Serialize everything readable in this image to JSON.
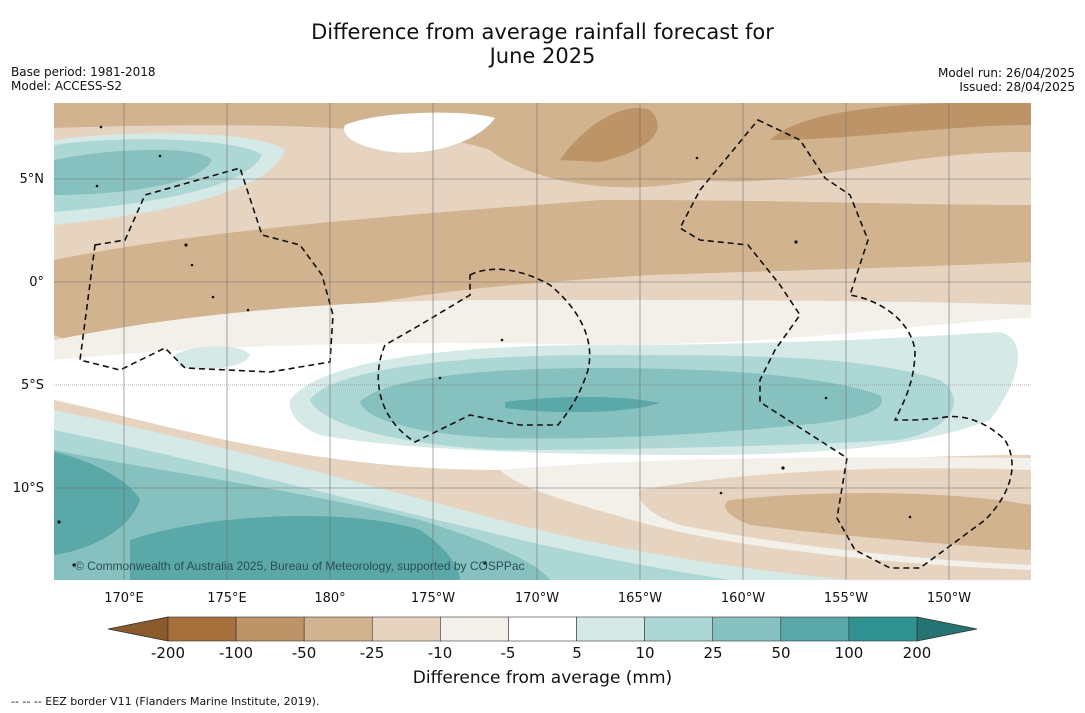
{
  "title_line1": "Difference from average rainfall forecast for",
  "title_line2": "June 2025",
  "meta_left": {
    "base_period": "Base period: 1981-2018",
    "model": "Model: ACCESS-S2"
  },
  "meta_right": {
    "model_run": "Model run: 26/04/2025",
    "issued": "Issued: 28/04/2025"
  },
  "map": {
    "lon_labels": [
      "170°E",
      "175°E",
      "180°",
      "175°W",
      "170°W",
      "165°W",
      "160°W",
      "155°W",
      "150°W"
    ],
    "lat_labels": [
      "5°N",
      "0°",
      "5°S",
      "10°S"
    ],
    "copyright": "© Commonwealth of Australia 2025, Bureau of Meteorology, supported by COSPPac"
  },
  "colorbar": {
    "title": "Difference from average (mm)",
    "ticks": [
      "-200",
      "-100",
      "-50",
      "-25",
      "-10",
      "-5",
      "5",
      "10",
      "25",
      "50",
      "100",
      "200"
    ],
    "colors": [
      "#a5703b",
      "#bc9468",
      "#d2b38f",
      "#e6d4c0",
      "#f3efe9",
      "#ffffff",
      "#d5e9e7",
      "#add7d5",
      "#86c1bf",
      "#5aa8a8",
      "#2f9190"
    ],
    "under_color": "#8a5a2b",
    "over_color": "#237472"
  },
  "footer_note": "--  --  -- EEZ border V11 (Flanders Marine Institute, 2019)."
}
